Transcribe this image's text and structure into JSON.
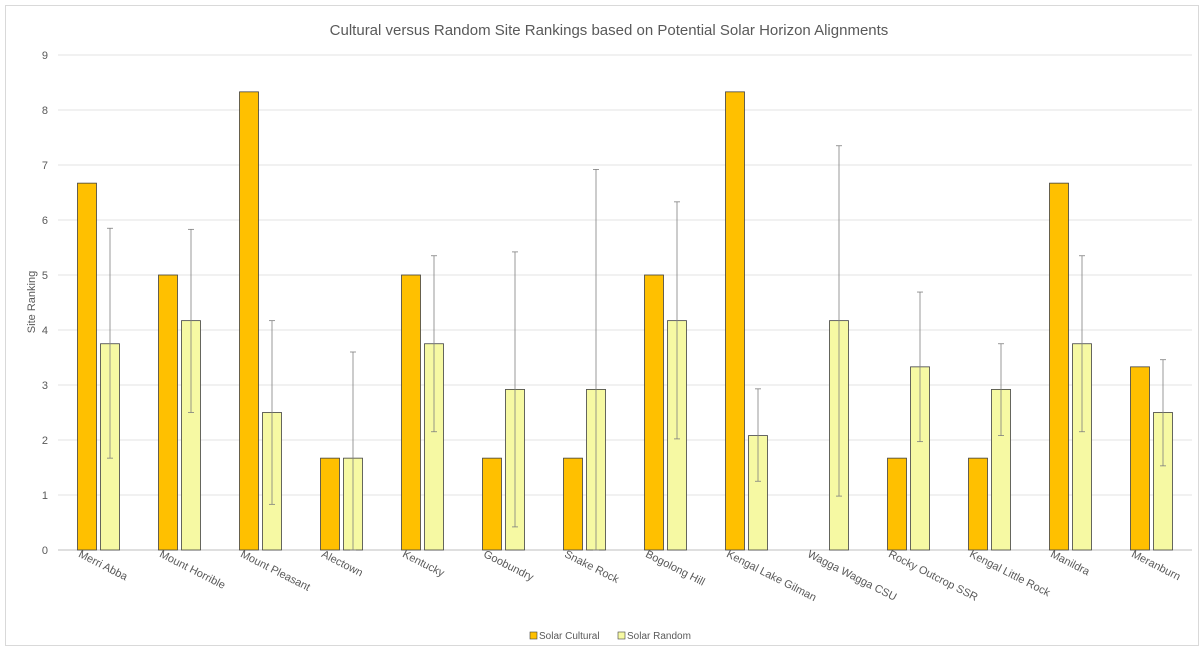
{
  "chart_data": {
    "type": "bar",
    "title": "Cultural versus Random  Site Rankings based on Potential Solar Horizon Alignments",
    "xlabel": "",
    "ylabel": "Site Ranking",
    "ylim": [
      0,
      9
    ],
    "yticks": [
      0,
      1,
      2,
      3,
      4,
      5,
      6,
      7,
      8,
      9
    ],
    "grid": true,
    "legend_position": "bottom",
    "categories": [
      "Merri Abba",
      "Mount Horrible",
      "Mount Pleasant",
      "Alectown",
      "Kentucky",
      "Goobundry",
      "Snake Rock",
      "Bogolong Hill",
      "Kengal Lake Gilman",
      "Wagga Wagga CSU",
      "Rocky Outcrop SSR",
      "Kengal Little Rock",
      "Manildra",
      "Meranburn"
    ],
    "series": [
      {
        "name": "Solar Cultural",
        "color": "#ffc000",
        "values": [
          6.67,
          5.0,
          8.33,
          1.67,
          5.0,
          1.67,
          1.67,
          5.0,
          8.33,
          0,
          1.67,
          1.67,
          6.67,
          3.33
        ]
      },
      {
        "name": "Solar Random",
        "color": "#f6f9a3",
        "values": [
          3.75,
          4.17,
          2.5,
          1.67,
          3.75,
          2.92,
          2.92,
          4.17,
          2.08,
          4.17,
          3.33,
          2.92,
          3.75,
          2.5
        ],
        "error_low": [
          1.67,
          2.5,
          0.83,
          0,
          2.15,
          0.42,
          0,
          2.02,
          1.25,
          0.98,
          1.97,
          2.08,
          2.15,
          1.53
        ],
        "error_high": [
          5.85,
          5.83,
          4.17,
          3.6,
          5.35,
          5.42,
          6.92,
          6.33,
          2.93,
          7.35,
          4.69,
          3.75,
          5.35,
          3.46
        ]
      }
    ]
  }
}
